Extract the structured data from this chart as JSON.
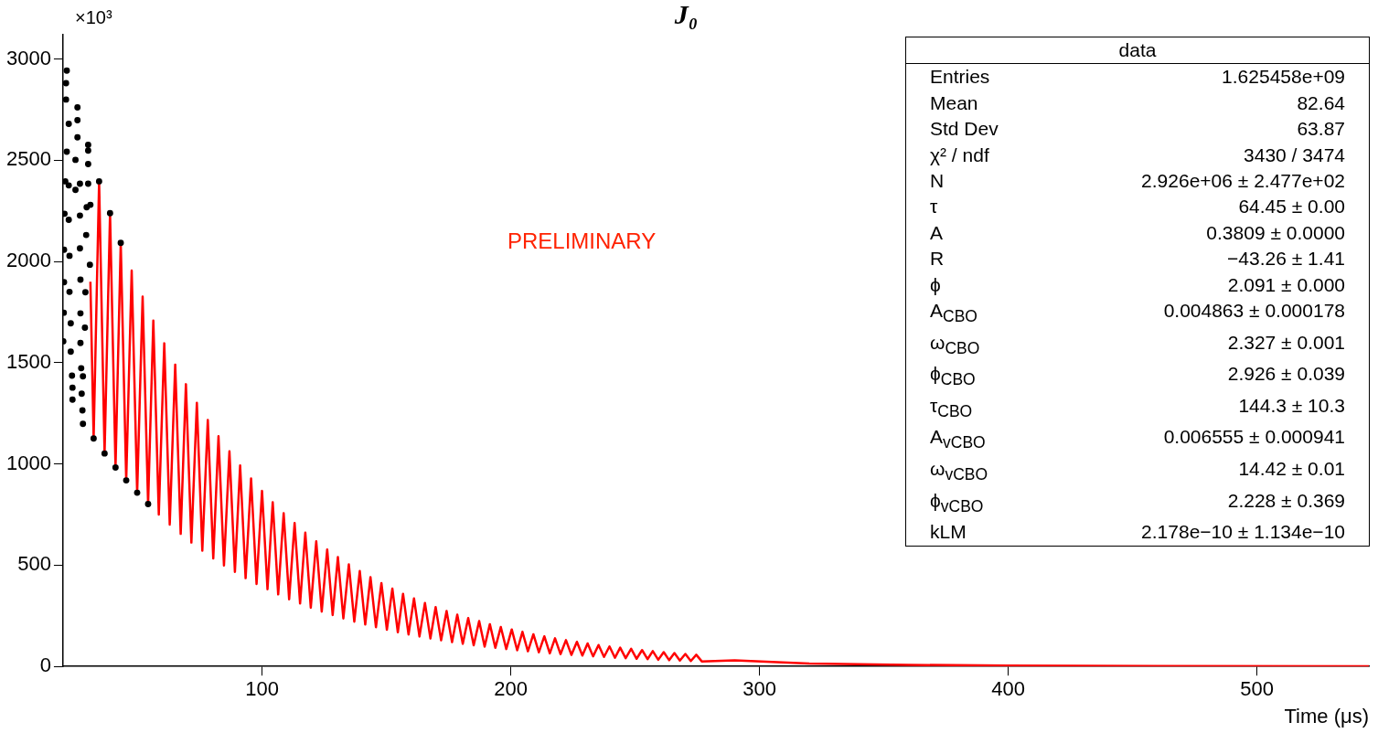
{
  "chart_data": {
    "type": "line",
    "title": "J₀",
    "xlabel": "Time (μs)",
    "xlim": [
      20,
      545
    ],
    "xticks": [
      100,
      200,
      300,
      400,
      500
    ],
    "ylim": [
      0,
      3120
    ],
    "yticks": [
      0,
      500,
      1000,
      1500,
      2000,
      2500,
      3000
    ],
    "annotations": [
      "×10³",
      "PRELIMINARY",
      "data",
      "Entries",
      "1.625458e+09",
      "Mean",
      "82.64",
      "Std Dev",
      "63.87",
      "χ² / ndf",
      "3430 / 3474",
      "N",
      "2.926e+06 ± 2.477e+02",
      "τ",
      "64.45 ± 0.00",
      "A",
      "0.3809 ± 0.0000",
      "R",
      "−43.26 ± 1.41",
      "ϕ",
      "2.091 ± 0.000",
      "A$_{CBO}$",
      "0.004863 ± 0.000178",
      "ω$_{CBO}$",
      "2.327 ± 0.001",
      "ϕ$_{CBO}$",
      "2.926 ± 0.039",
      "τ$_{CBO}$",
      "144.3 ± 10.3",
      "A$_{vCBO}$",
      "0.006555 ± 0.000941",
      "ω$_{vCBO}$",
      "14.42 ± 0.01",
      "ϕ$_{vCBO}$",
      "2.228 ± 0.369",
      "kLM",
      "2.178e−10 ± 1.134e−10"
    ],
    "series": [
      {
        "type": "line",
        "color": "#ff0000",
        "x": [
          31,
          32.3,
          34.5,
          36.7,
          38.9,
          41.1,
          43.2,
          45.4,
          47.6,
          49.8,
          52.0,
          54.2,
          56.3,
          58.5,
          60.7,
          62.9,
          65.1,
          67.3,
          69.4,
          71.6,
          73.8,
          76.0,
          78.2,
          80.4,
          82.5,
          84.7,
          86.9,
          89.1,
          91.2,
          93.4,
          95.6,
          97.8,
          100.0,
          102.2,
          104.3,
          106.5,
          108.7,
          110.9,
          113.1,
          115.3,
          117.4,
          119.6,
          121.8,
          124.0,
          126.2,
          128.4,
          130.5,
          132.7,
          134.9,
          137.1,
          139.3,
          141.5,
          143.6,
          145.8,
          148.0,
          150.2,
          152.4,
          154.6,
          156.7,
          158.9,
          161.1,
          163.3,
          165.5,
          167.7,
          169.8,
          172.0,
          174.2,
          176.4,
          178.5,
          180.7,
          182.9,
          185.1,
          187.3,
          189.5,
          191.6,
          193.8,
          196.0,
          198.2,
          200.4,
          202.6,
          204.7,
          206.9,
          209.1,
          211.3,
          213.5,
          215.7,
          217.8,
          220.0,
          222.2,
          224.4,
          226.6,
          228.8,
          230.9,
          233.1,
          235.3,
          237.5,
          239.7,
          241.9,
          244.0,
          246.2,
          248.4,
          250.6,
          252.8,
          255.0,
          257.1,
          259.3,
          261.5,
          263.7,
          265.8,
          268.0,
          270.2,
          272.4,
          274.6,
          276.8,
          290,
          320,
          360,
          400,
          460,
          545
        ],
        "values": [
          1900,
          1126,
          2396,
          1052,
          2239,
          983,
          2092,
          919,
          1955,
          858,
          1827,
          802,
          1708,
          750,
          1596,
          701,
          1491,
          655,
          1394,
          612,
          1302,
          572,
          1217,
          534,
          1137,
          499,
          1063,
          467,
          993,
          436,
          928,
          407,
          867,
          381,
          811,
          356,
          757,
          332,
          708,
          311,
          661,
          290,
          618,
          271,
          578,
          254,
          540,
          237,
          504,
          221,
          471,
          207,
          441,
          194,
          412,
          181,
          385,
          169,
          359,
          158,
          336,
          148,
          314,
          138,
          293,
          129,
          274,
          120,
          256,
          112,
          239,
          105,
          224,
          98,
          209,
          92,
          195,
          86,
          183,
          80,
          171,
          75,
          159,
          70,
          149,
          65,
          139,
          61,
          130,
          57,
          122,
          54,
          114,
          50,
          106,
          47,
          99,
          43,
          93,
          41,
          87,
          38,
          81,
          36,
          76,
          33,
          71,
          31,
          66,
          29,
          62,
          27,
          58,
          25,
          30,
          15,
          8,
          4,
          2,
          1
        ]
      },
      {
        "type": "scatter",
        "color": "#000000",
        "marker": "circle",
        "x": [
          21.5,
          21.2,
          21.2,
          22.3,
          25.8,
          25.8,
          25.8,
          21.5,
          25,
          30.1,
          30.1,
          30.1,
          22.3,
          25,
          30.1,
          20.9,
          26.8,
          20.6,
          22.3,
          26.8,
          29.5,
          31,
          20.4,
          22.6,
          26.8,
          29.3,
          20.4,
          22.6,
          27,
          29,
          30.8,
          20.3,
          23.1,
          27,
          28.8,
          20.1,
          23.1,
          27,
          23.6,
          27.3,
          28,
          23.8,
          27.5,
          23.8,
          27.8,
          28,
          32.3,
          36.7,
          41.1,
          45.4,
          49.8,
          54.2,
          34.5,
          38.9,
          43.2
        ],
        "values": [
          2943,
          2881,
          2800,
          2680,
          2761,
          2698,
          2613,
          2542,
          2502,
          2576,
          2548,
          2481,
          2376,
          2354,
          2384,
          2396,
          2384,
          2236,
          2206,
          2227,
          2268,
          2280,
          2058,
          2028,
          2065,
          2131,
          1898,
          1850,
          1910,
          1848,
          1984,
          1747,
          1695,
          1744,
          1673,
          1606,
          1555,
          1598,
          1436,
          1473,
          1433,
          1377,
          1347,
          1318,
          1265,
          1198,
          1126,
          1052,
          983,
          919,
          858,
          802,
          2396,
          2239,
          2092
        ]
      }
    ]
  }
}
